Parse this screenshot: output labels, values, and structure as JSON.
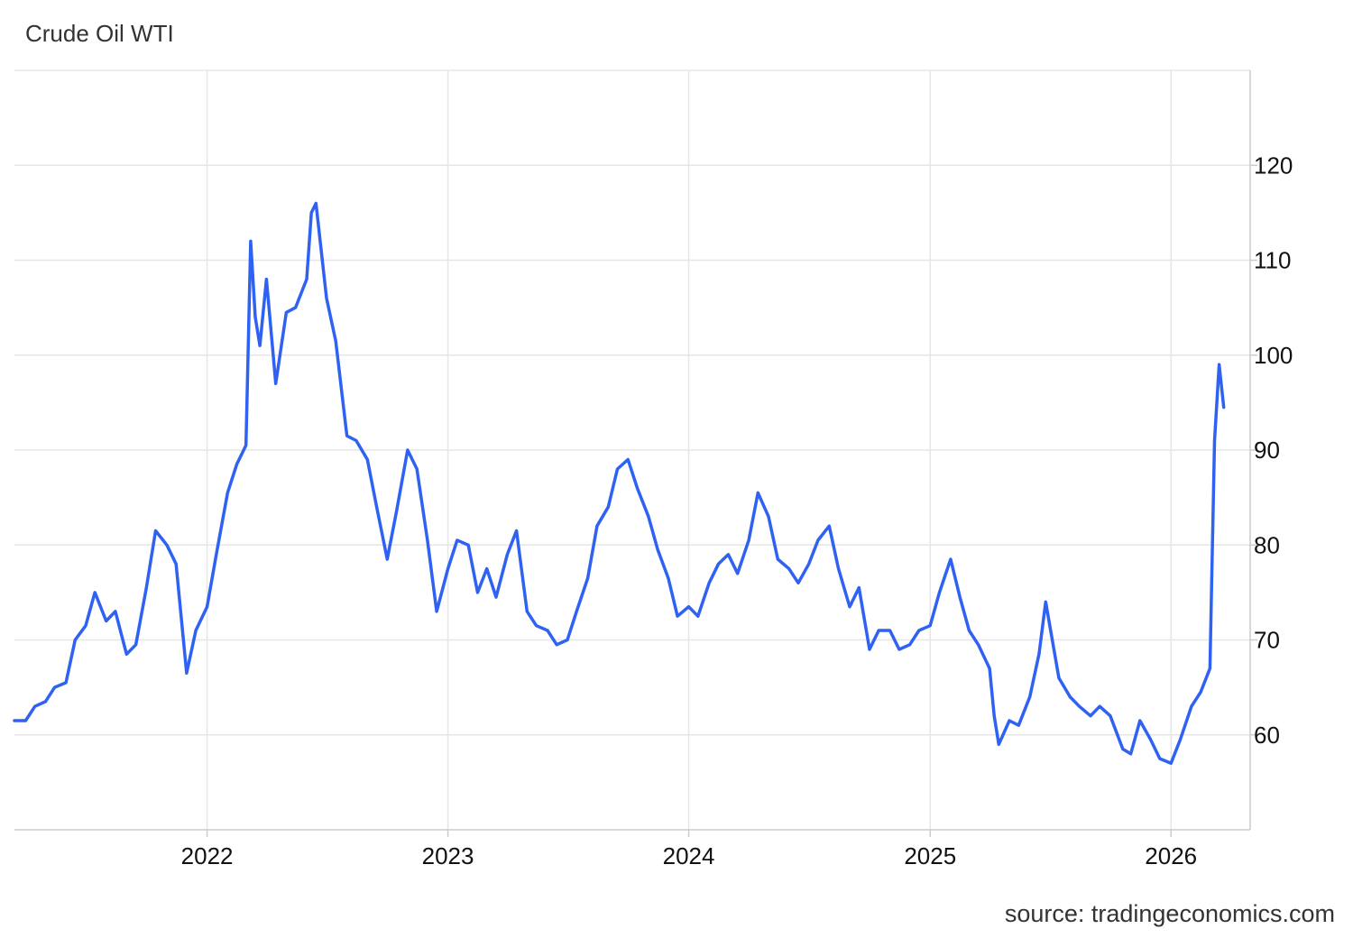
{
  "title": "Crude Oil WTI",
  "source": "source: tradingeconomics.com",
  "colors": {
    "line": "#2f62f2",
    "grid": "#e6e6e6",
    "axis": "#cccccc",
    "text": "#111111"
  },
  "chart_data": {
    "type": "line",
    "title": "Crude Oil WTI",
    "xlabel": "",
    "ylabel": "",
    "xlim": [
      "2021-03-15",
      "2026-05-01"
    ],
    "ylim": [
      50,
      130
    ],
    "y_axis_position": "right",
    "grid": true,
    "legend": "none",
    "x_ticks": [
      "2022",
      "2023",
      "2024",
      "2025",
      "2026"
    ],
    "y_ticks": [
      60,
      70,
      80,
      90,
      100,
      110,
      120
    ],
    "series": [
      {
        "name": "",
        "x": [
          "2021-03-15",
          "2021-04-01",
          "2021-04-15",
          "2021-05-01",
          "2021-05-15",
          "2021-06-01",
          "2021-06-15",
          "2021-07-01",
          "2021-07-15",
          "2021-08-01",
          "2021-08-15",
          "2021-09-01",
          "2021-09-15",
          "2021-10-01",
          "2021-10-15",
          "2021-11-01",
          "2021-11-15",
          "2021-12-01",
          "2021-12-15",
          "2022-01-01",
          "2022-01-15",
          "2022-02-01",
          "2022-02-15",
          "2022-03-01",
          "2022-03-08",
          "2022-03-15",
          "2022-03-22",
          "2022-04-01",
          "2022-04-15",
          "2022-05-01",
          "2022-05-15",
          "2022-06-01",
          "2022-06-08",
          "2022-06-15",
          "2022-07-01",
          "2022-07-15",
          "2022-08-01",
          "2022-08-15",
          "2022-09-01",
          "2022-09-15",
          "2022-10-01",
          "2022-10-15",
          "2022-11-01",
          "2022-11-15",
          "2022-12-01",
          "2022-12-15",
          "2023-01-01",
          "2023-01-15",
          "2023-02-01",
          "2023-02-15",
          "2023-03-01",
          "2023-03-15",
          "2023-04-01",
          "2023-04-15",
          "2023-05-01",
          "2023-05-15",
          "2023-06-01",
          "2023-06-15",
          "2023-07-01",
          "2023-07-15",
          "2023-08-01",
          "2023-08-15",
          "2023-09-01",
          "2023-09-15",
          "2023-10-01",
          "2023-10-15",
          "2023-11-01",
          "2023-11-15",
          "2023-12-01",
          "2023-12-15",
          "2024-01-01",
          "2024-01-15",
          "2024-02-01",
          "2024-02-15",
          "2024-03-01",
          "2024-03-15",
          "2024-04-01",
          "2024-04-15",
          "2024-05-01",
          "2024-05-15",
          "2024-06-01",
          "2024-06-15",
          "2024-07-01",
          "2024-07-15",
          "2024-08-01",
          "2024-08-15",
          "2024-09-01",
          "2024-09-15",
          "2024-10-01",
          "2024-10-15",
          "2024-11-01",
          "2024-11-15",
          "2024-12-01",
          "2024-12-15",
          "2025-01-01",
          "2025-01-15",
          "2025-02-01",
          "2025-02-15",
          "2025-03-01",
          "2025-03-15",
          "2025-04-01",
          "2025-04-08",
          "2025-04-15",
          "2025-05-01",
          "2025-05-15",
          "2025-06-01",
          "2025-06-15",
          "2025-06-25",
          "2025-07-15",
          "2025-08-01",
          "2025-08-15",
          "2025-09-01",
          "2025-09-15",
          "2025-10-01",
          "2025-10-20",
          "2025-11-01",
          "2025-11-15",
          "2025-12-01",
          "2025-12-15",
          "2026-01-01",
          "2026-01-15",
          "2026-02-01",
          "2026-02-15",
          "2026-03-01",
          "2026-03-08",
          "2026-03-15",
          "2026-03-22"
        ],
        "values": [
          61.5,
          61.5,
          63,
          63.5,
          65,
          65.5,
          70,
          71.5,
          75,
          72,
          73,
          68.5,
          69.5,
          75.5,
          81.5,
          80,
          78,
          66.5,
          71,
          73.5,
          79,
          85.5,
          88.5,
          90.5,
          112,
          104,
          101,
          108,
          97,
          104.5,
          105,
          108,
          115,
          116,
          106,
          101.5,
          91.5,
          91,
          89,
          84,
          78.5,
          83.5,
          90,
          88,
          80.5,
          73,
          77.5,
          80.5,
          80,
          75,
          77.5,
          74.5,
          79,
          81.5,
          73,
          71.5,
          71,
          69.5,
          70,
          73,
          76.5,
          82,
          84,
          88,
          89,
          86,
          83,
          79.5,
          76.5,
          72.5,
          73.5,
          72.5,
          76,
          78,
          79,
          77,
          80.5,
          85.5,
          83,
          78.5,
          77.5,
          76,
          78,
          80.5,
          82,
          77.5,
          73.5,
          75.5,
          69,
          71,
          71,
          69,
          69.5,
          71,
          71.5,
          75,
          78.5,
          74.5,
          71,
          69.5,
          67,
          62,
          59,
          61.5,
          61,
          64,
          68.5,
          74,
          66,
          64,
          63,
          62,
          63,
          62,
          58.5,
          58,
          61.5,
          59.5,
          57.5,
          57,
          59.5,
          63,
          64.5,
          67,
          91,
          99,
          94.5
        ]
      }
    ]
  }
}
